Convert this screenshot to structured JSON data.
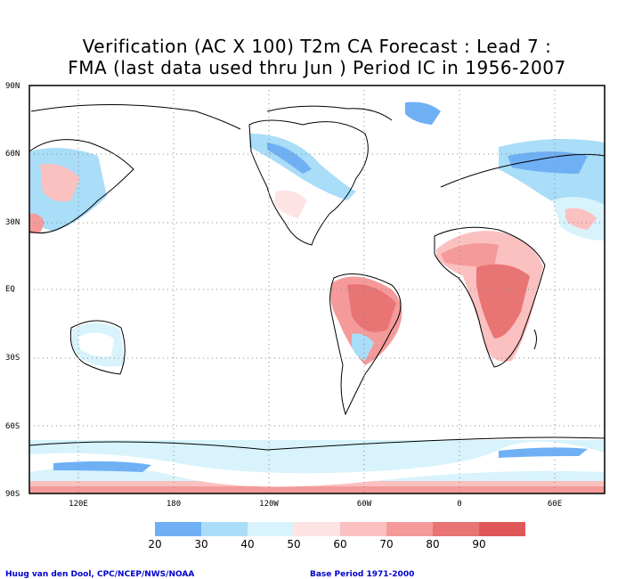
{
  "title_line1": "Verification (AC X 100) T2m CA Forecast : Lead 7 :",
  "title_line2": "FMA (last data used thru Jun ) Period IC in 1956-2007",
  "lat_labels": [
    "90N",
    "60N",
    "30N",
    "EQ",
    "30S",
    "60S",
    "90S"
  ],
  "lon_labels": [
    "120E",
    "180",
    "120W",
    "60W",
    "0",
    "60E"
  ],
  "legend": {
    "labels": [
      "20",
      "30",
      "40",
      "50",
      "60",
      "70",
      "80",
      "90"
    ],
    "colors": [
      "#6fb0f5",
      "#a9ddf8",
      "#d8f3fb",
      "#fde3e3",
      "#fbc0c0",
      "#f49a9a",
      "#e97474",
      "#e05757",
      "#aaaaaa"
    ]
  },
  "credit_left": "Huug van den Dool, CPC/NCEP/NWS/NOAA",
  "credit_right": "Base Period 1971-2000"
}
